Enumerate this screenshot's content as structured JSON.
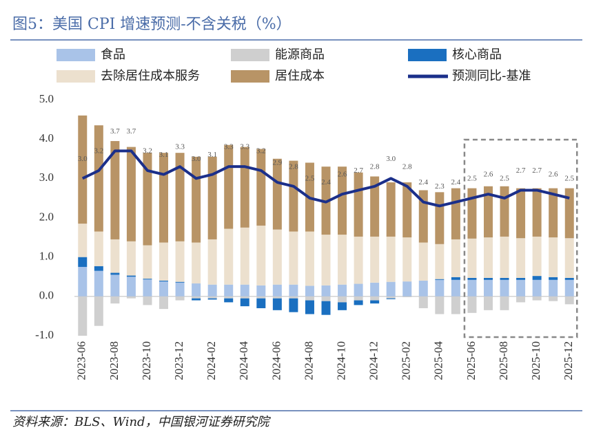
{
  "chart_data": {
    "type": "bar",
    "title": "图5：美国 CPI 增速预测-不含关税（%）",
    "source": "资料来源：BLS、Wind，中国银河证券研究院",
    "categories": [
      "2023-06",
      null,
      "2023-08",
      null,
      "2023-10",
      null,
      "2023-12",
      null,
      "2024-02",
      null,
      "2024-04",
      null,
      "2024-06",
      null,
      "2024-08",
      null,
      "2024-10",
      null,
      "2024-12",
      null,
      "2025-02",
      null,
      "2025-04",
      null,
      "2025-06",
      null,
      "2025-08",
      null,
      "2025-10",
      null,
      "2025-12"
    ],
    "ylim": [
      -1.0,
      5.0
    ],
    "yticks": [
      {
        "value": -1,
        "label": "-1.0"
      },
      {
        "value": 0,
        "label": "0.0"
      },
      {
        "value": 1,
        "label": "1.0"
      },
      {
        "value": 2,
        "label": "2.0"
      },
      {
        "value": 3,
        "label": "3.0"
      },
      {
        "value": 4,
        "label": "4.0"
      },
      {
        "value": 5,
        "label": "5.0"
      }
    ],
    "stacked": true,
    "series": [
      {
        "name": "食品",
        "color": "#a9c3e8",
        "values": [
          0.75,
          0.65,
          0.55,
          0.5,
          0.43,
          0.38,
          0.35,
          0.33,
          0.3,
          0.3,
          0.3,
          0.28,
          0.3,
          0.3,
          0.27,
          0.28,
          0.3,
          0.32,
          0.35,
          0.37,
          0.38,
          0.4,
          0.42,
          0.42,
          0.42,
          0.42,
          0.42,
          0.42,
          0.42,
          0.42,
          0.42
        ]
      },
      {
        "name": "能源商品",
        "color": "#cfcfcf",
        "values": [
          -1.0,
          -0.75,
          -0.18,
          -0.05,
          -0.22,
          -0.32,
          -0.1,
          -0.05,
          -0.05,
          -0.05,
          -0.05,
          -0.05,
          -0.05,
          -0.05,
          -0.1,
          -0.12,
          -0.15,
          -0.1,
          -0.1,
          -0.05,
          -0.02,
          -0.3,
          -0.45,
          -0.45,
          -0.42,
          -0.35,
          -0.35,
          -0.15,
          -0.1,
          -0.12,
          -0.2
        ]
      },
      {
        "name": "核心商品",
        "color": "#1a6fc0",
        "values": [
          0.25,
          0.12,
          0.05,
          0.03,
          0.02,
          0.02,
          0.02,
          -0.05,
          -0.03,
          -0.1,
          -0.2,
          -0.25,
          -0.3,
          -0.35,
          -0.35,
          -0.35,
          -0.2,
          -0.12,
          -0.08,
          -0.02,
          0.0,
          0.0,
          0.02,
          0.07,
          0.05,
          0.05,
          0.05,
          0.05,
          0.1,
          0.07,
          0.05
        ]
      },
      {
        "name": "去除居住成本服务",
        "color": "#ece0ce",
        "values": [
          0.85,
          0.88,
          0.85,
          0.87,
          0.85,
          0.97,
          1.03,
          1.04,
          1.15,
          1.42,
          1.45,
          1.52,
          1.4,
          1.35,
          1.38,
          1.29,
          1.27,
          1.2,
          1.17,
          1.15,
          1.12,
          0.97,
          0.89,
          0.96,
          1.0,
          1.03,
          1.05,
          1.01,
          1.0,
          1.01,
          1.01
        ]
      },
      {
        "name": "居住成本",
        "color": "#b89466",
        "values": [
          2.75,
          2.7,
          2.5,
          2.4,
          2.35,
          2.28,
          2.25,
          2.18,
          2.1,
          2.13,
          2.05,
          1.95,
          1.8,
          1.8,
          1.75,
          1.73,
          1.73,
          1.63,
          1.53,
          1.38,
          1.4,
          1.33,
          1.32,
          1.3,
          1.28,
          1.3,
          1.28,
          1.27,
          1.23,
          1.25,
          1.27
        ]
      },
      {
        "name": "预测同比-基准",
        "color": "#1b2f8a",
        "type": "line",
        "values": [
          3.0,
          3.2,
          3.7,
          3.7,
          3.2,
          3.1,
          3.3,
          3.0,
          3.1,
          3.3,
          3.3,
          3.2,
          2.9,
          2.8,
          2.5,
          2.4,
          2.6,
          2.7,
          2.8,
          3.0,
          2.8,
          2.4,
          2.3,
          2.4,
          2.5,
          2.6,
          2.5,
          2.7,
          2.7,
          2.6,
          2.5
        ],
        "value_labels": [
          "3.0",
          "3.2",
          "3.7",
          "3.7",
          "3.2",
          "3.1",
          "3.3",
          "3.0",
          "3.1",
          "3.3",
          "3.3",
          "3.2",
          "2.9",
          "2.8",
          "2.5",
          "2.4",
          "2.6",
          "2.7",
          "2.8",
          "3.0",
          "2.8",
          "2.4",
          "2.3",
          "2.4",
          "2.5",
          "2.6",
          "2.5",
          "2.7",
          "2.7",
          "2.6",
          "2.5"
        ]
      }
    ]
  }
}
